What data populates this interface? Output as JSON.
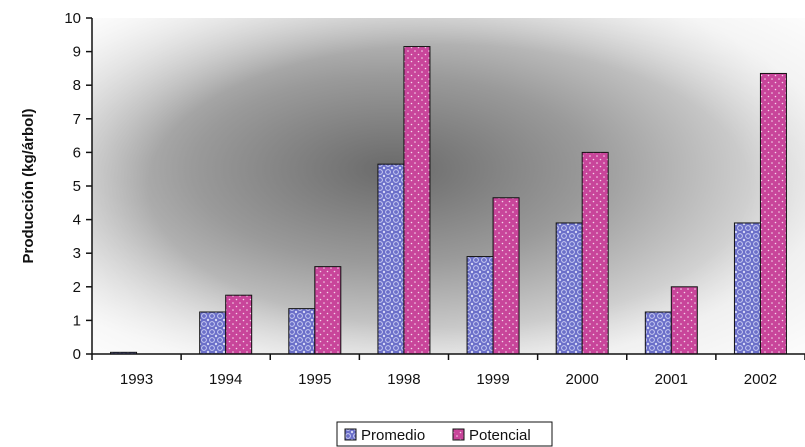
{
  "chart_data": {
    "type": "bar",
    "title": "",
    "xlabel": "",
    "ylabel": "Producción (kg/árbol)",
    "categories": [
      "1993",
      "1994",
      "1995",
      "1998",
      "1999",
      "2000",
      "2001",
      "2002"
    ],
    "series": [
      {
        "name": "Promedio",
        "values": [
          0.05,
          1.25,
          1.35,
          5.65,
          2.9,
          3.9,
          1.25,
          3.9
        ],
        "color": "#6b6fc9"
      },
      {
        "name": "Potencial",
        "values": [
          0,
          1.75,
          2.6,
          9.15,
          4.65,
          6.0,
          2.0,
          8.35
        ],
        "color": "#c8459a"
      }
    ],
    "ylim": [
      0,
      10
    ],
    "yticks": [
      0,
      1,
      2,
      3,
      4,
      5,
      6,
      7,
      8,
      9,
      10
    ],
    "grid": false,
    "legend_position": "bottom-center"
  }
}
